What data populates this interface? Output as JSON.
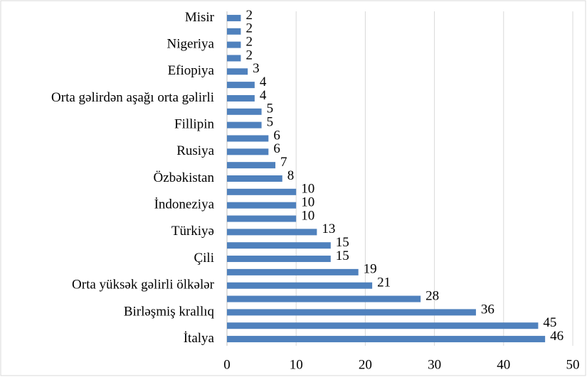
{
  "chart_data": {
    "type": "bar",
    "orientation": "horizontal",
    "categories": [
      "İtalya",
      null,
      "Birləşmiş krallıq",
      null,
      "Orta yüksək gəlirli ölkələr",
      null,
      "Çili",
      null,
      "Türkiyə",
      null,
      "İndoneziya",
      null,
      "Özbəkistan",
      null,
      "Rusiya",
      null,
      "Fillipin",
      null,
      "Orta gəlirdən aşağı orta gəlirli",
      null,
      "Efiopiya",
      null,
      "Nigeriya",
      null,
      "Misir"
    ],
    "values": [
      46,
      45,
      36,
      28,
      21,
      19,
      15,
      15,
      13,
      10,
      10,
      10,
      8,
      7,
      6,
      6,
      5,
      5,
      4,
      4,
      3,
      2,
      2,
      2,
      2
    ],
    "color": "#4f81bd",
    "xlim": [
      0,
      50
    ],
    "xticks": [
      0,
      10,
      20,
      30,
      40,
      50
    ],
    "grid": true
  }
}
